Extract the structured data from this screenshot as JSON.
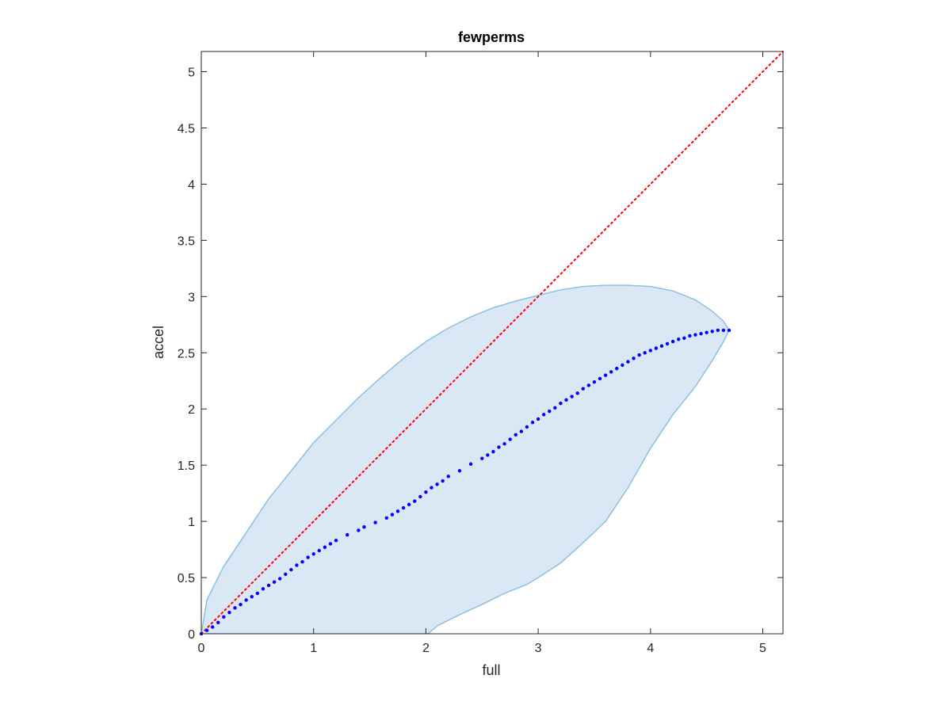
{
  "chart_data": {
    "type": "scatter",
    "title": "fewperms",
    "xlabel": "full",
    "ylabel": "accel",
    "xlim": [
      0,
      5.18
    ],
    "ylim": [
      0,
      5.18
    ],
    "xticks": [
      0,
      1,
      2,
      3,
      4,
      5
    ],
    "yticks": [
      0,
      0.5,
      1,
      1.5,
      2,
      2.5,
      3,
      3.5,
      4,
      4.5,
      5
    ],
    "xtick_labels": [
      "0",
      "1",
      "2",
      "3",
      "4",
      "5"
    ],
    "ytick_labels": [
      "0",
      "0.5",
      "1",
      "1.5",
      "2",
      "2.5",
      "3",
      "3.5",
      "4",
      "4.5",
      "5"
    ],
    "grid": false,
    "reference_line": {
      "x": [
        0,
        5.18
      ],
      "y": [
        0,
        5.18
      ],
      "color": "#ff0000",
      "style": "dotted"
    },
    "band": {
      "color": "#d9e8f4",
      "edge_color": "#8dbfdf",
      "upper": {
        "x": [
          0,
          0.05,
          0.1,
          0.2,
          0.4,
          0.6,
          0.8,
          1.0,
          1.2,
          1.4,
          1.6,
          1.8,
          2.0,
          2.2,
          2.4,
          2.6,
          2.8,
          3.0,
          3.2,
          3.4,
          3.6,
          3.8,
          4.0,
          4.2,
          4.4,
          4.55,
          4.65,
          4.7
        ],
        "y": [
          0,
          0.3,
          0.4,
          0.6,
          0.9,
          1.2,
          1.45,
          1.7,
          1.9,
          2.1,
          2.28,
          2.45,
          2.6,
          2.72,
          2.82,
          2.9,
          2.96,
          3.01,
          3.06,
          3.09,
          3.1,
          3.1,
          3.09,
          3.05,
          2.97,
          2.87,
          2.78,
          2.7
        ]
      },
      "lower": {
        "x": [
          0,
          2.02,
          2.1,
          2.3,
          2.5,
          2.7,
          2.9,
          3.0,
          3.2,
          3.4,
          3.6,
          3.8,
          4.0,
          4.2,
          4.4,
          4.55,
          4.65,
          4.7
        ],
        "y": [
          0,
          0,
          0.07,
          0.17,
          0.26,
          0.36,
          0.44,
          0.5,
          0.63,
          0.81,
          1.0,
          1.3,
          1.65,
          1.95,
          2.2,
          2.43,
          2.6,
          2.7
        ]
      }
    },
    "series": [
      {
        "color": "#0000ff",
        "marker": "dot",
        "x": [
          0,
          0.05,
          0.1,
          0.15,
          0.2,
          0.25,
          0.3,
          0.35,
          0.4,
          0.45,
          0.5,
          0.55,
          0.6,
          0.65,
          0.7,
          0.75,
          0.8,
          0.85,
          0.9,
          0.95,
          1.0,
          1.05,
          1.1,
          1.15,
          1.2,
          1.3,
          1.4,
          1.45,
          1.55,
          1.65,
          1.7,
          1.75,
          1.8,
          1.85,
          1.9,
          1.95,
          2.0,
          2.05,
          2.1,
          2.15,
          2.2,
          2.3,
          2.4,
          2.5,
          2.55,
          2.6,
          2.65,
          2.7,
          2.75,
          2.8,
          2.85,
          2.9,
          2.95,
          3.0,
          3.05,
          3.1,
          3.15,
          3.2,
          3.25,
          3.3,
          3.35,
          3.4,
          3.45,
          3.5,
          3.55,
          3.6,
          3.65,
          3.7,
          3.75,
          3.8,
          3.85,
          3.9,
          3.95,
          4.0,
          4.05,
          4.1,
          4.15,
          4.2,
          4.25,
          4.3,
          4.35,
          4.4,
          4.45,
          4.5,
          4.55,
          4.6,
          4.65,
          4.7
        ],
        "y": [
          0,
          0.03,
          0.06,
          0.1,
          0.15,
          0.19,
          0.23,
          0.26,
          0.3,
          0.33,
          0.36,
          0.4,
          0.43,
          0.46,
          0.49,
          0.53,
          0.57,
          0.61,
          0.64,
          0.68,
          0.71,
          0.74,
          0.77,
          0.8,
          0.83,
          0.88,
          0.92,
          0.95,
          0.99,
          1.03,
          1.06,
          1.09,
          1.12,
          1.15,
          1.18,
          1.22,
          1.26,
          1.3,
          1.33,
          1.36,
          1.4,
          1.45,
          1.51,
          1.56,
          1.59,
          1.62,
          1.66,
          1.69,
          1.73,
          1.77,
          1.8,
          1.84,
          1.88,
          1.91,
          1.95,
          1.98,
          2.01,
          2.05,
          2.08,
          2.11,
          2.14,
          2.18,
          2.21,
          2.24,
          2.27,
          2.3,
          2.33,
          2.36,
          2.39,
          2.42,
          2.45,
          2.48,
          2.5,
          2.52,
          2.54,
          2.56,
          2.58,
          2.6,
          2.62,
          2.63,
          2.65,
          2.66,
          2.67,
          2.68,
          2.69,
          2.7,
          2.7,
          2.7
        ]
      }
    ]
  }
}
